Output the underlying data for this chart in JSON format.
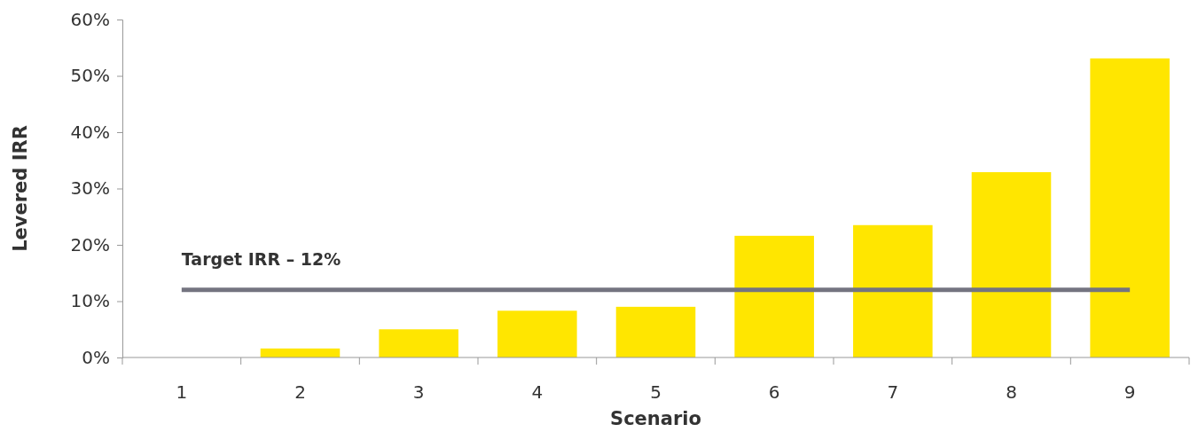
{
  "chart_data": {
    "type": "bar",
    "xlabel": "Scenario",
    "ylabel": "Levered IRR",
    "categories": [
      "1",
      "2",
      "3",
      "4",
      "5",
      "6",
      "7",
      "8",
      "9"
    ],
    "values": [
      0,
      1.6,
      5.0,
      8.3,
      9.0,
      21.6,
      23.5,
      32.9,
      53.1
    ],
    "color": "#ffe600",
    "ylim": [
      0,
      60
    ],
    "yticks": [
      {
        "value": 0,
        "label": "0%"
      },
      {
        "value": 10,
        "label": "10%"
      },
      {
        "value": 20,
        "label": "20%"
      },
      {
        "value": 30,
        "label": "30%"
      },
      {
        "value": 40,
        "label": "40%"
      },
      {
        "value": 50,
        "label": "50%"
      },
      {
        "value": 60,
        "label": "60%"
      }
    ],
    "ref_lines": [
      {
        "axis": "y",
        "value": 12,
        "label": "Target IRR – 12%",
        "color": "#747480"
      }
    ],
    "grid": false
  }
}
